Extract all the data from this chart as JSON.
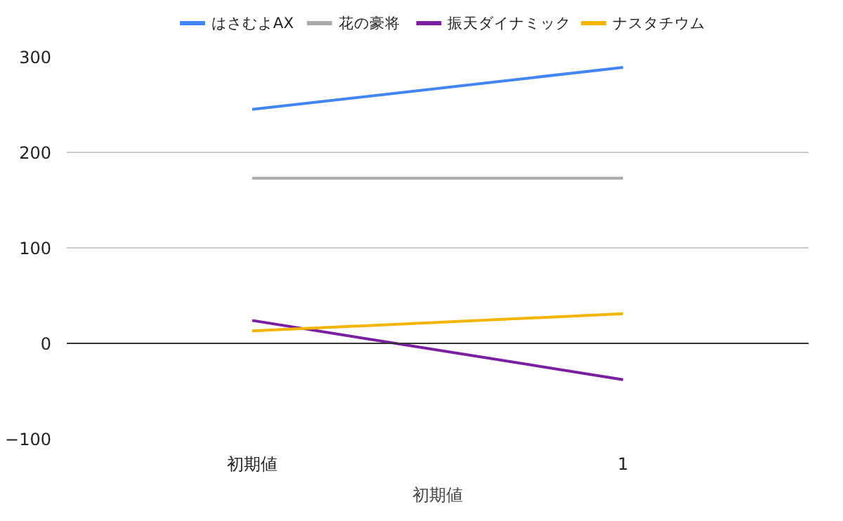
{
  "chart_data": {
    "type": "line",
    "xlabel": "初期値",
    "categories": [
      "初期値",
      "1"
    ],
    "series": [
      {
        "name": "はさむよAX",
        "color": "#4285f4",
        "values": [
          245,
          289
        ]
      },
      {
        "name": "花の豪将",
        "color": "#aaaaaa",
        "values": [
          173,
          173
        ]
      },
      {
        "name": "振天ダイナミック",
        "color": "#7b1fa2",
        "values": [
          24,
          -38
        ]
      },
      {
        "name": "ナスタチウム",
        "color": "#f4b400",
        "values": [
          13,
          31
        ]
      }
    ],
    "ylim": [
      -100,
      300
    ],
    "yticks": [
      -100,
      0,
      100,
      200,
      300
    ],
    "grid": "y",
    "legend": "top",
    "ref_lines": [
      {
        "axis": "y",
        "value": 0,
        "color": "#333333"
      }
    ]
  }
}
